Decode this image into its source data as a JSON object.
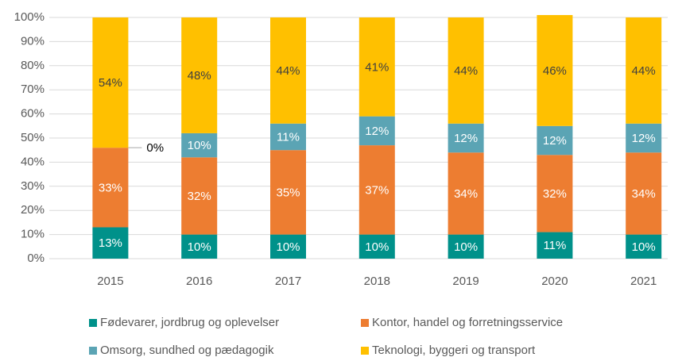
{
  "chart_data": {
    "type": "stacked_bar",
    "categories": [
      "2015",
      "2016",
      "2017",
      "2018",
      "2019",
      "2020",
      "2021"
    ],
    "series": [
      {
        "name": "Fødevarer, jordbrug og oplevelser",
        "color": "#00918a",
        "values": [
          13,
          10,
          10,
          10,
          10,
          11,
          10
        ],
        "value_labels": [
          "13%",
          "10%",
          "10%",
          "10%",
          "10%",
          "11%",
          "10%"
        ]
      },
      {
        "name": "Kontor, handel og forretningsservice",
        "color": "#ed7d31",
        "values": [
          33,
          32,
          35,
          37,
          34,
          32,
          34
        ],
        "value_labels": [
          "33%",
          "32%",
          "35%",
          "37%",
          "34%",
          "32%",
          "34%"
        ]
      },
      {
        "name": "Omsorg, sundhed og pædagogik",
        "color": "#5ba4b4",
        "values": [
          0,
          10,
          11,
          12,
          12,
          12,
          12
        ],
        "value_labels": [
          "0%",
          "10%",
          "11%",
          "12%",
          "12%",
          "12%",
          "12%"
        ]
      },
      {
        "name": "Teknologi, byggeri og transport",
        "color": "#ffc000",
        "values": [
          54,
          48,
          44,
          41,
          44,
          46,
          44
        ],
        "value_labels": [
          "54%",
          "48%",
          "44%",
          "41%",
          "44%",
          "46%",
          "44%"
        ]
      }
    ],
    "ylim": [
      0,
      100
    ],
    "yticks": [
      {
        "value": 0,
        "label": "0%"
      },
      {
        "value": 10,
        "label": "10%"
      },
      {
        "value": 20,
        "label": "20%"
      },
      {
        "value": 30,
        "label": "30%"
      },
      {
        "value": 40,
        "label": "40%"
      },
      {
        "value": 50,
        "label": "50%"
      },
      {
        "value": 60,
        "label": "60%"
      },
      {
        "value": 70,
        "label": "70%"
      },
      {
        "value": 80,
        "label": "80%"
      },
      {
        "value": 90,
        "label": "90%"
      },
      {
        "value": 100,
        "label": "100%"
      }
    ],
    "grid": true
  }
}
